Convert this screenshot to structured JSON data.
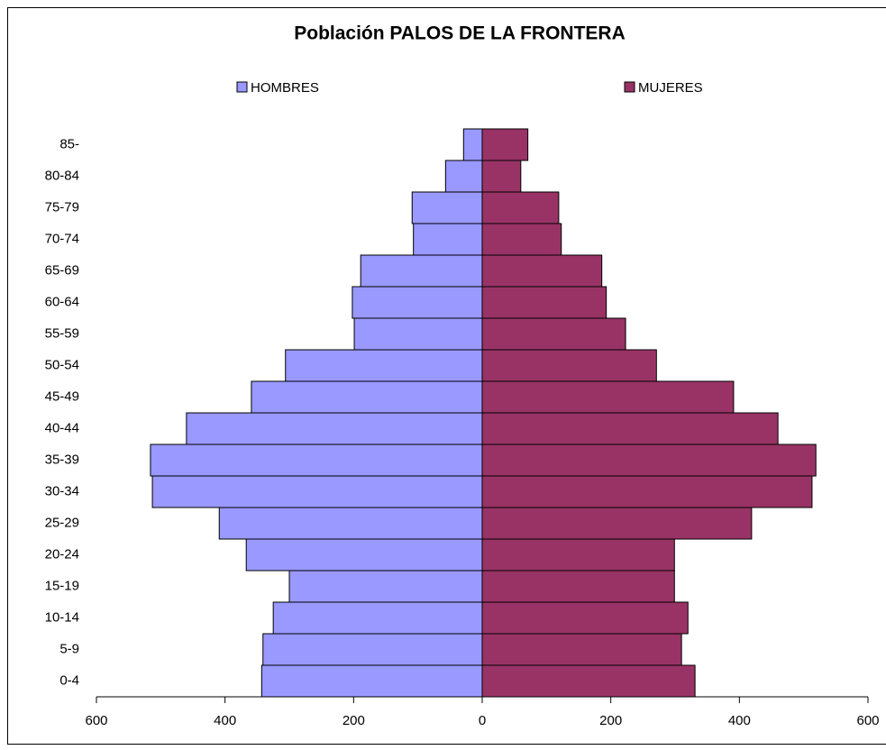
{
  "chart_data": {
    "type": "pyramid",
    "title": "Población PALOS DE LA FRONTERA",
    "categories": [
      "0-4",
      "5-9",
      "10-14",
      "15-19",
      "20-24",
      "25-29",
      "30-34",
      "35-39",
      "40-44",
      "45-49",
      "50-54",
      "55-59",
      "60-64",
      "65-69",
      "70-74",
      "75-79",
      "80-84",
      "85-"
    ],
    "series": [
      {
        "name": "HOMBRES",
        "color": "#9999ff",
        "values": [
          -343,
          -341,
          -325,
          -300,
          -367,
          -409,
          -513,
          -516,
          -460,
          -359,
          -306,
          -199,
          -202,
          -189,
          -107,
          -109,
          -57,
          -29
        ]
      },
      {
        "name": "MUJERES",
        "color": "#993366",
        "values": [
          331,
          310,
          320,
          299,
          299,
          419,
          513,
          519,
          460,
          391,
          271,
          223,
          193,
          186,
          123,
          119,
          60,
          71
        ]
      }
    ],
    "xlim": [
      -600,
      600
    ],
    "xticks": [
      {
        "value": -600,
        "label": "600"
      },
      {
        "value": -400,
        "label": "400"
      },
      {
        "value": -200,
        "label": "200"
      },
      0,
      200,
      400,
      600
    ]
  }
}
